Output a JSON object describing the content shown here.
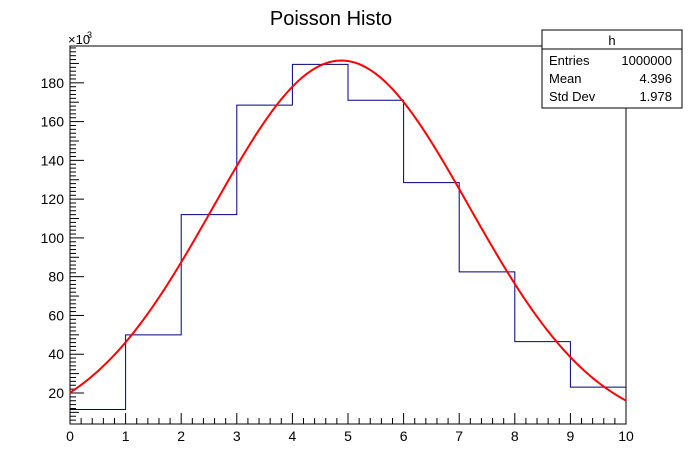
{
  "chart_data": {
    "type": "bar",
    "title": "Poisson Histo",
    "xlabel": "",
    "ylabel": "",
    "y_multiplier_label": "×10",
    "y_multiplier_exponent": "3",
    "xlim": [
      0,
      10
    ],
    "ylim": [
      4,
      199
    ],
    "x_ticks": [
      0,
      1,
      2,
      3,
      4,
      5,
      6,
      7,
      8,
      9,
      10
    ],
    "y_ticks": [
      20,
      40,
      60,
      80,
      100,
      120,
      140,
      160,
      180
    ],
    "bins": [
      {
        "low": 0,
        "high": 1,
        "value": 11.5
      },
      {
        "low": 1,
        "high": 2,
        "value": 50
      },
      {
        "low": 2,
        "high": 3,
        "value": 112
      },
      {
        "low": 3,
        "high": 4,
        "value": 168.5
      },
      {
        "low": 4,
        "high": 5,
        "value": 189.5
      },
      {
        "low": 5,
        "high": 6,
        "value": 171
      },
      {
        "low": 6,
        "high": 7,
        "value": 128.5
      },
      {
        "low": 7,
        "high": 8,
        "value": 82.5
      },
      {
        "low": 8,
        "high": 9,
        "value": 46.5
      },
      {
        "low": 9,
        "high": 10,
        "value": 23
      }
    ],
    "fit": {
      "name": "gaus",
      "constant": 191.5,
      "mean": 4.88,
      "sigma": 2.3,
      "x_range": [
        0,
        10
      ],
      "color": "#ff0000"
    },
    "hist_color": "#000080",
    "grid": false
  },
  "stats": {
    "name": "h",
    "rows": [
      {
        "label": "Entries",
        "value": "1000000"
      },
      {
        "label": "Mean",
        "value": "4.396"
      },
      {
        "label": "Std Dev",
        "value": "1.978"
      }
    ]
  }
}
